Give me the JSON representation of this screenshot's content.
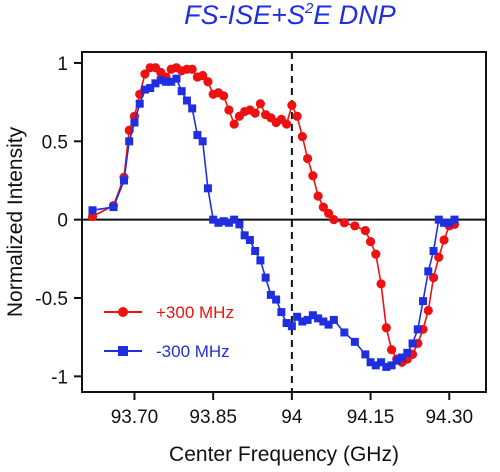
{
  "chart_data": {
    "type": "line",
    "title": {
      "before": "FS-ISE+S",
      "superscript": "2",
      "after": "E DNP"
    },
    "xlabel": "Center Frequency (GHz)",
    "ylabel": "Normalized Intensity",
    "xlim": [
      93.6,
      94.37
    ],
    "ylim": [
      -1.1,
      1.07
    ],
    "x_ticks": [
      93.7,
      93.85,
      94.0,
      94.15,
      94.3
    ],
    "x_tick_labels": [
      "93.70",
      "93.85",
      "94",
      "94.15",
      "94.30"
    ],
    "y_ticks": [
      1,
      0.5,
      0,
      -0.5,
      -1
    ],
    "y_tick_labels": [
      "1",
      "0.5",
      "0",
      "-0.5",
      "-1"
    ],
    "zero_line": true,
    "vertical_reference_line": {
      "x": 94.0,
      "style": "dashed"
    },
    "grid": false,
    "legend_position": "lower-left",
    "series": [
      {
        "name": "+300 MHz",
        "color": "#ee1111",
        "marker": "circle",
        "x": [
          93.62,
          93.66,
          93.68,
          93.69,
          93.7,
          93.71,
          93.72,
          93.73,
          93.74,
          93.75,
          93.76,
          93.77,
          93.78,
          93.79,
          93.8,
          93.81,
          93.82,
          93.83,
          93.84,
          93.85,
          93.86,
          93.87,
          93.88,
          93.89,
          93.9,
          93.91,
          93.92,
          93.93,
          93.94,
          93.95,
          93.96,
          93.97,
          93.98,
          93.99,
          94.0,
          94.01,
          94.02,
          94.03,
          94.04,
          94.05,
          94.06,
          94.07,
          94.08,
          94.1,
          94.12,
          94.14,
          94.15,
          94.16,
          94.17,
          94.18,
          94.19,
          94.2,
          94.21,
          94.22,
          94.23,
          94.24,
          94.25,
          94.26,
          94.27,
          94.28,
          94.29,
          94.3,
          94.31
        ],
        "y": [
          0.02,
          0.09,
          0.27,
          0.57,
          0.66,
          0.8,
          0.93,
          0.97,
          0.97,
          0.94,
          0.91,
          0.96,
          0.97,
          0.95,
          0.96,
          0.96,
          0.91,
          0.92,
          0.88,
          0.8,
          0.81,
          0.79,
          0.7,
          0.61,
          0.66,
          0.69,
          0.7,
          0.68,
          0.74,
          0.67,
          0.65,
          0.62,
          0.64,
          0.61,
          0.73,
          0.66,
          0.53,
          0.39,
          0.28,
          0.15,
          0.08,
          0.04,
          0.0,
          -0.02,
          -0.04,
          -0.07,
          -0.14,
          -0.22,
          -0.41,
          -0.69,
          -0.83,
          -0.89,
          -0.91,
          -0.89,
          -0.86,
          -0.79,
          -0.7,
          -0.58,
          -0.37,
          -0.24,
          -0.13,
          -0.04,
          -0.03
        ]
      },
      {
        "name": "-300 MHz",
        "color": "#1f2fe0",
        "marker": "square",
        "x": [
          93.62,
          93.66,
          93.68,
          93.69,
          93.7,
          93.71,
          93.72,
          93.73,
          93.74,
          93.75,
          93.76,
          93.77,
          93.78,
          93.79,
          93.8,
          93.81,
          93.82,
          93.83,
          93.84,
          93.85,
          93.86,
          93.87,
          93.88,
          93.89,
          93.9,
          93.91,
          93.92,
          93.93,
          93.94,
          93.95,
          93.96,
          93.97,
          93.98,
          93.99,
          94.0,
          94.01,
          94.02,
          94.03,
          94.04,
          94.05,
          94.06,
          94.07,
          94.08,
          94.1,
          94.12,
          94.14,
          94.15,
          94.16,
          94.17,
          94.18,
          94.19,
          94.2,
          94.21,
          94.22,
          94.23,
          94.24,
          94.25,
          94.26,
          94.27,
          94.28,
          94.29,
          94.3,
          94.31
        ],
        "y": [
          0.06,
          0.08,
          0.25,
          0.5,
          0.62,
          0.74,
          0.83,
          0.84,
          0.87,
          0.89,
          0.88,
          0.88,
          0.9,
          0.82,
          0.76,
          0.71,
          0.54,
          0.5,
          0.2,
          0.0,
          -0.02,
          -0.01,
          -0.02,
          0.0,
          -0.03,
          -0.1,
          -0.13,
          -0.2,
          -0.26,
          -0.37,
          -0.48,
          -0.51,
          -0.59,
          -0.66,
          -0.68,
          -0.62,
          -0.65,
          -0.64,
          -0.61,
          -0.63,
          -0.65,
          -0.67,
          -0.64,
          -0.72,
          -0.78,
          -0.86,
          -0.91,
          -0.93,
          -0.91,
          -0.94,
          -0.93,
          -0.9,
          -0.88,
          -0.85,
          -0.79,
          -0.7,
          -0.52,
          -0.33,
          -0.2,
          0.0,
          -0.02,
          -0.02,
          0.0
        ]
      }
    ]
  }
}
